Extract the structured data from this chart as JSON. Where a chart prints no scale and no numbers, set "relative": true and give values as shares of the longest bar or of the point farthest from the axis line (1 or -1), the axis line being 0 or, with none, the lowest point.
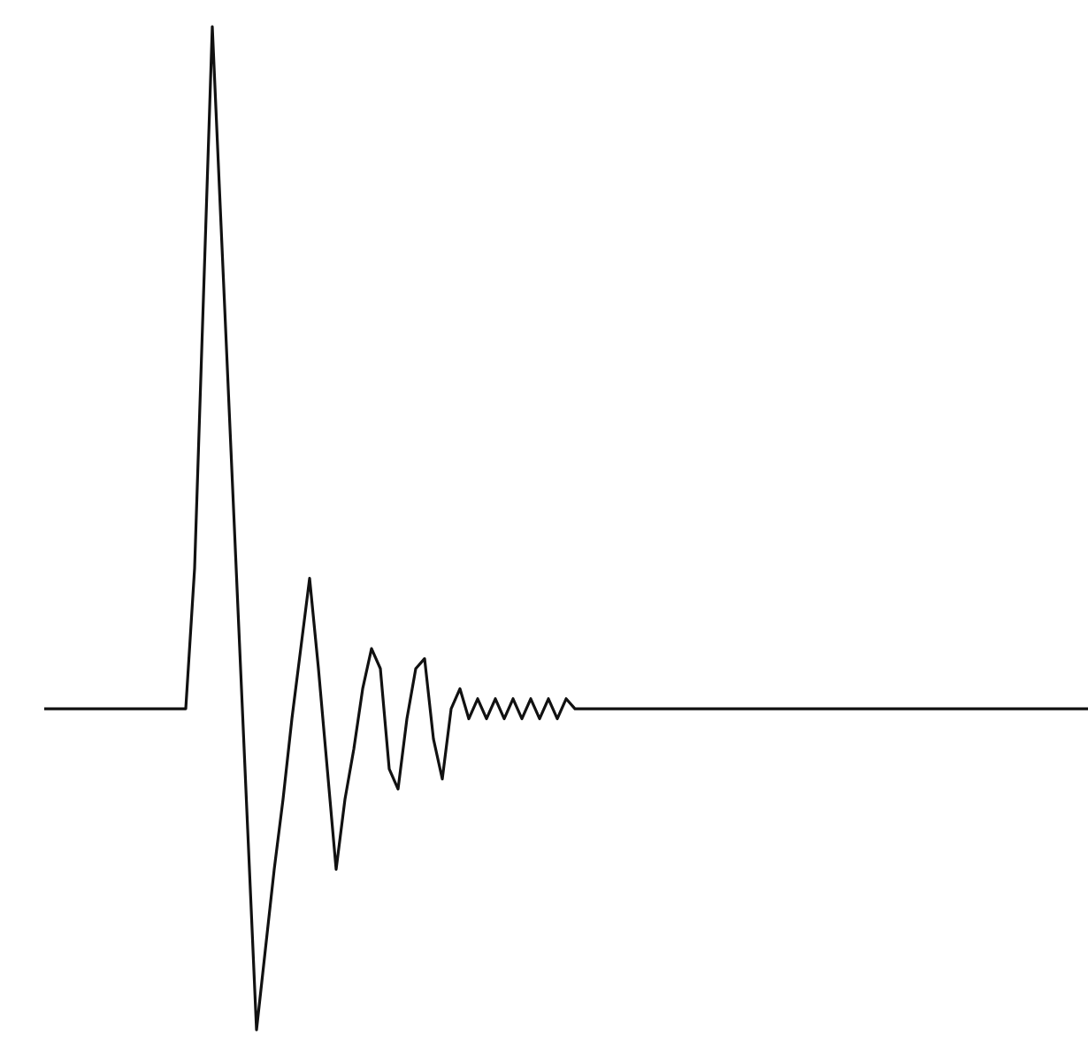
{
  "chart_data": {
    "type": "line",
    "relative": true,
    "categories": [
      null,
      null,
      null,
      null,
      null,
      null,
      null,
      null,
      null,
      null,
      null,
      null,
      null,
      null,
      null,
      null,
      null,
      null,
      null,
      null,
      null,
      null,
      null,
      null,
      null,
      null,
      null,
      null,
      null,
      null,
      null,
      null,
      null,
      null,
      null,
      null,
      null,
      null,
      null,
      null,
      null,
      null,
      null,
      null,
      null,
      null,
      null,
      null,
      null,
      null,
      null,
      null,
      null,
      null,
      null,
      null,
      null,
      null,
      null,
      null,
      null,
      null,
      null,
      null,
      null,
      null,
      null,
      null,
      null,
      null,
      null,
      null,
      null,
      null,
      null,
      null,
      null,
      null,
      null,
      null,
      null,
      null,
      null,
      null,
      null,
      null,
      null,
      null,
      null,
      null,
      null,
      null,
      null,
      null,
      null,
      null,
      null,
      null,
      null,
      null,
      null,
      null,
      null,
      null,
      null,
      null,
      null,
      null,
      null,
      null,
      null,
      null,
      null,
      null,
      null,
      null,
      null,
      null,
      null
    ],
    "series": [
      {
        "color": "#111111",
        "values": [
          0.32,
          0.32,
          0.32,
          0.32,
          0.32,
          0.32,
          0.32,
          0.32,
          0.32,
          0.32,
          0.32,
          0.32,
          0.32,
          0.32,
          0.32,
          0.32,
          0.32,
          0.46,
          0.73,
          1,
          0.8,
          0.6,
          0.4,
          0.2,
          0,
          0.08,
          0.16,
          0.23,
          0.31,
          0.38,
          0.45,
          0.36,
          0.26,
          0.16,
          0.23,
          0.28,
          0.34,
          0.38,
          0.36,
          0.26,
          0.24,
          0.31,
          0.36,
          0.37,
          0.29,
          0.25,
          0.32,
          0.34,
          0.31,
          0.33,
          0.31,
          0.33,
          0.31,
          0.33,
          0.31,
          0.33,
          0.31,
          0.33,
          0.31,
          0.33,
          0.32,
          0.32,
          0.32,
          0.32,
          0.32,
          0.32,
          0.32,
          0.32,
          0.32,
          0.32,
          0.32,
          0.32,
          0.32,
          0.32,
          0.32,
          0.32,
          0.32,
          0.32,
          0.32,
          0.32,
          0.32,
          0.32,
          0.32,
          0.32,
          0.32,
          0.32,
          0.32,
          0.32,
          0.32,
          0.32,
          0.32,
          0.32,
          0.32,
          0.32,
          0.32,
          0.32,
          0.32,
          0.32,
          0.32,
          0.32,
          0.32,
          0.32,
          0.32,
          0.32,
          0.32,
          0.32,
          0.32,
          0.32,
          0.32,
          0.32,
          0.32,
          0.32,
          0.32,
          0.32,
          0.32,
          0.32,
          0.32,
          0.32,
          0.32
        ]
      }
    ]
  }
}
